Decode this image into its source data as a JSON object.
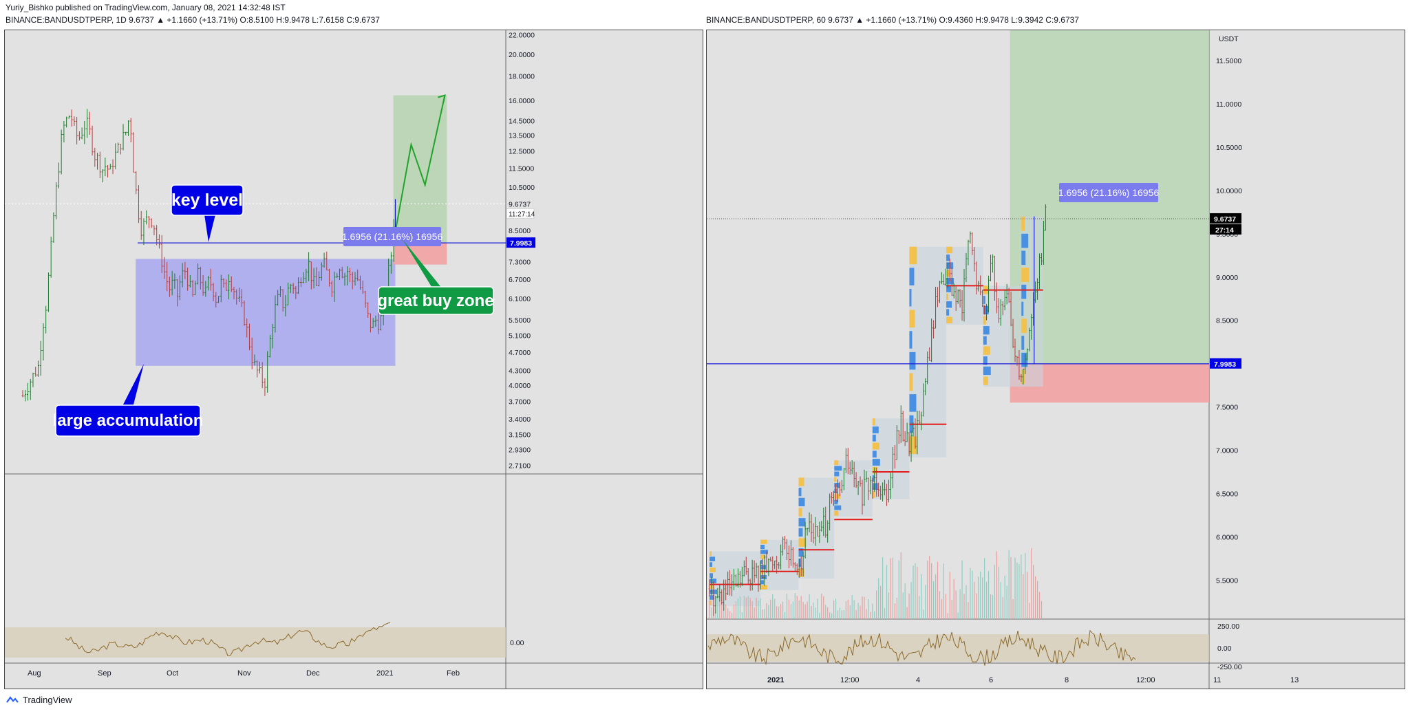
{
  "header": {
    "published": "Yuriy_Bishko published on TradingView.com, January 08, 2021 14:32:48 IST",
    "left_symbol": "BINANCE:BANDUSDTPERP, 1D 9.6737 ▲ +1.1660 (+13.71%) O:8.5100 H:9.9478 L:7.6158 C:9.6737",
    "right_symbol": "BINANCE:BANDUSDTPERP, 60 9.6737 ▲ +1.1660 (+13.71%) O:9.4360 H:9.9478 L:9.3942 C:9.6737"
  },
  "footer": {
    "brand": "TradingView"
  },
  "colors": {
    "pane_bg": "#e2e2e2",
    "up_candle": "#1b7a2a",
    "down_candle": "#b53a3a",
    "level_line": "#1a1ad6",
    "accumulation_box": "#a7a7f0",
    "profit_zone": "#b9d5b3",
    "stop_zone": "#f0a4a4",
    "callout_blue": "#0000e6",
    "callout_green": "#109a43",
    "price_label_bg": "#0000e6",
    "measure_label_bg": "#7b7bee",
    "cci_line": "#8b6a2b",
    "cci_band": "#d9cdb4",
    "poc_line": "#e41a1a"
  },
  "chart_data": [
    {
      "name": "daily",
      "type": "candlestick",
      "timeframe": "1D",
      "y_scale": "log",
      "ylim": [
        2.6,
        22.5
      ],
      "y_ticks": [
        "22.0000",
        "20.0000",
        "18.0000",
        "16.0000",
        "14.5000",
        "13.5000",
        "12.5000",
        "11.5000",
        "10.5000",
        "9.6737",
        "8.5000",
        "7.9983",
        "7.3000",
        "6.7000",
        "6.1000",
        "5.5000",
        "5.1000",
        "4.7000",
        "4.3000",
        "4.0000",
        "3.7000",
        "3.4000",
        "3.1500",
        "2.9300",
        "2.7100"
      ],
      "y_tick_top_partial": "USDT",
      "x_ticks": [
        "Aug",
        "Sep",
        "Oct",
        "Nov",
        "Dec",
        "2021",
        "Feb"
      ],
      "last_price": "9.6737",
      "countdown": "11:27:14",
      "key_level": 7.9983,
      "key_level_label": "7.9983",
      "accumulation_range": [
        4.4,
        7.4
      ],
      "long_position": {
        "entry": 8.0,
        "target": 16.4,
        "stop": 7.2
      },
      "measure_label": "1.6956 (21.16%) 16956",
      "callouts": [
        "key level",
        "large accumulation",
        "great buy zone"
      ],
      "close_path": [
        [
          0,
          3.8
        ],
        [
          4,
          4.1
        ],
        [
          8,
          4.4
        ],
        [
          10,
          5.3
        ],
        [
          12,
          6.0
        ],
        [
          14,
          7.5
        ],
        [
          16,
          9.5
        ],
        [
          18,
          11.4
        ],
        [
          20,
          13.8
        ],
        [
          22,
          14.5
        ],
        [
          24,
          15.0
        ],
        [
          26,
          14.0
        ],
        [
          28,
          13.2
        ],
        [
          30,
          13.8
        ],
        [
          32,
          14.4
        ],
        [
          34,
          13.6
        ],
        [
          36,
          12.3
        ],
        [
          38,
          12.0
        ],
        [
          40,
          11.4
        ],
        [
          42,
          11.7
        ],
        [
          44,
          11.2
        ],
        [
          46,
          12.1
        ],
        [
          48,
          12.6
        ],
        [
          50,
          13.2
        ],
        [
          52,
          13.7
        ],
        [
          54,
          14.9
        ],
        [
          56,
          11.4
        ],
        [
          58,
          9.5
        ],
        [
          60,
          8.5
        ],
        [
          62,
          8.9
        ],
        [
          64,
          9.1
        ],
        [
          66,
          8.8
        ],
        [
          68,
          8.0
        ],
        [
          70,
          7.4
        ],
        [
          72,
          6.8
        ],
        [
          74,
          6.4
        ],
        [
          76,
          6.6
        ],
        [
          78,
          6.2
        ],
        [
          80,
          6.8
        ],
        [
          82,
          7.0
        ],
        [
          84,
          6.5
        ],
        [
          86,
          6.1
        ],
        [
          88,
          6.9
        ],
        [
          90,
          6.6
        ],
        [
          92,
          6.2
        ],
        [
          94,
          6.7
        ],
        [
          96,
          6.4
        ],
        [
          98,
          6.0
        ],
        [
          100,
          6.6
        ],
        [
          102,
          6.3
        ],
        [
          104,
          6.8
        ],
        [
          106,
          6.5
        ],
        [
          108,
          6.1
        ],
        [
          110,
          5.9
        ],
        [
          112,
          5.5
        ],
        [
          114,
          5.0
        ],
        [
          116,
          4.5
        ],
        [
          118,
          4.3
        ],
        [
          120,
          4.2
        ],
        [
          122,
          4.0
        ],
        [
          124,
          4.7
        ],
        [
          126,
          5.4
        ],
        [
          128,
          6.0
        ],
        [
          130,
          6.2
        ],
        [
          132,
          5.8
        ],
        [
          134,
          6.4
        ],
        [
          136,
          6.6
        ],
        [
          138,
          6.2
        ],
        [
          140,
          6.8
        ],
        [
          142,
          7.0
        ],
        [
          144,
          7.3
        ],
        [
          146,
          6.7
        ],
        [
          148,
          6.4
        ],
        [
          150,
          7.0
        ],
        [
          152,
          7.2
        ],
        [
          154,
          6.8
        ],
        [
          156,
          6.5
        ],
        [
          158,
          6.9
        ],
        [
          160,
          7.2
        ],
        [
          162,
          6.8
        ],
        [
          164,
          7.0
        ],
        [
          166,
          6.6
        ],
        [
          168,
          6.9
        ],
        [
          170,
          6.5
        ],
        [
          172,
          6.1
        ],
        [
          174,
          5.6
        ],
        [
          176,
          5.3
        ],
        [
          178,
          5.5
        ],
        [
          180,
          5.4
        ],
        [
          182,
          5.8
        ],
        [
          184,
          6.7
        ],
        [
          186,
          7.6
        ],
        [
          188,
          9.67
        ]
      ]
    },
    {
      "name": "hourly",
      "type": "candlestick",
      "timeframe": "60",
      "y_scale": "linear",
      "ylim": [
        5.05,
        11.85
      ],
      "y_unit": "USDT",
      "y_ticks": [
        "11.5000",
        "11.0000",
        "10.5000",
        "10.0000",
        "9.5000",
        "9.0000",
        "8.5000",
        "8.0000",
        "7.5000",
        "7.0000",
        "6.5000",
        "6.0000",
        "5.5000"
      ],
      "x_ticks": [
        "2021",
        "12:00",
        "4",
        "6",
        "8",
        "12:00",
        "11",
        "13"
      ],
      "last_price": "9.6737",
      "countdown": "27:14",
      "key_level": 7.9983,
      "key_level_label": "7.9983",
      "long_position": {
        "entry": 8.0,
        "target": 11.85,
        "stop": 7.55
      },
      "measure_label": "1.6956 (21.16%) 16956",
      "close_path": [
        [
          0,
          5.4
        ],
        [
          6,
          5.3
        ],
        [
          12,
          5.35
        ],
        [
          18,
          5.4
        ],
        [
          24,
          5.5
        ],
        [
          30,
          5.6
        ],
        [
          36,
          5.55
        ],
        [
          42,
          5.6
        ],
        [
          48,
          5.7
        ],
        [
          54,
          5.8
        ],
        [
          60,
          5.85
        ],
        [
          66,
          5.75
        ],
        [
          72,
          5.7
        ],
        [
          78,
          6.2
        ],
        [
          84,
          6.0
        ],
        [
          90,
          6.1
        ],
        [
          96,
          6.4
        ],
        [
          102,
          6.5
        ],
        [
          108,
          6.9
        ],
        [
          114,
          6.6
        ],
        [
          120,
          6.5
        ],
        [
          126,
          6.6
        ],
        [
          132,
          6.7
        ],
        [
          138,
          6.5
        ],
        [
          144,
          6.9
        ],
        [
          150,
          7.3
        ],
        [
          156,
          7.1
        ],
        [
          162,
          7.2
        ],
        [
          168,
          7.6
        ],
        [
          174,
          8.3
        ],
        [
          180,
          8.9
        ],
        [
          186,
          9.1
        ],
        [
          192,
          8.8
        ],
        [
          198,
          8.6
        ],
        [
          204,
          9.5
        ],
        [
          210,
          8.9
        ],
        [
          216,
          8.6
        ],
        [
          222,
          9.2
        ],
        [
          228,
          8.5
        ],
        [
          234,
          8.8
        ],
        [
          240,
          8.1
        ],
        [
          246,
          7.9
        ],
        [
          252,
          8.5
        ],
        [
          258,
          9.0
        ],
        [
          264,
          9.67
        ]
      ],
      "poc_levels": [
        5.45,
        5.6,
        5.85,
        6.2,
        6.75,
        7.3,
        8.9,
        8.85
      ]
    }
  ]
}
